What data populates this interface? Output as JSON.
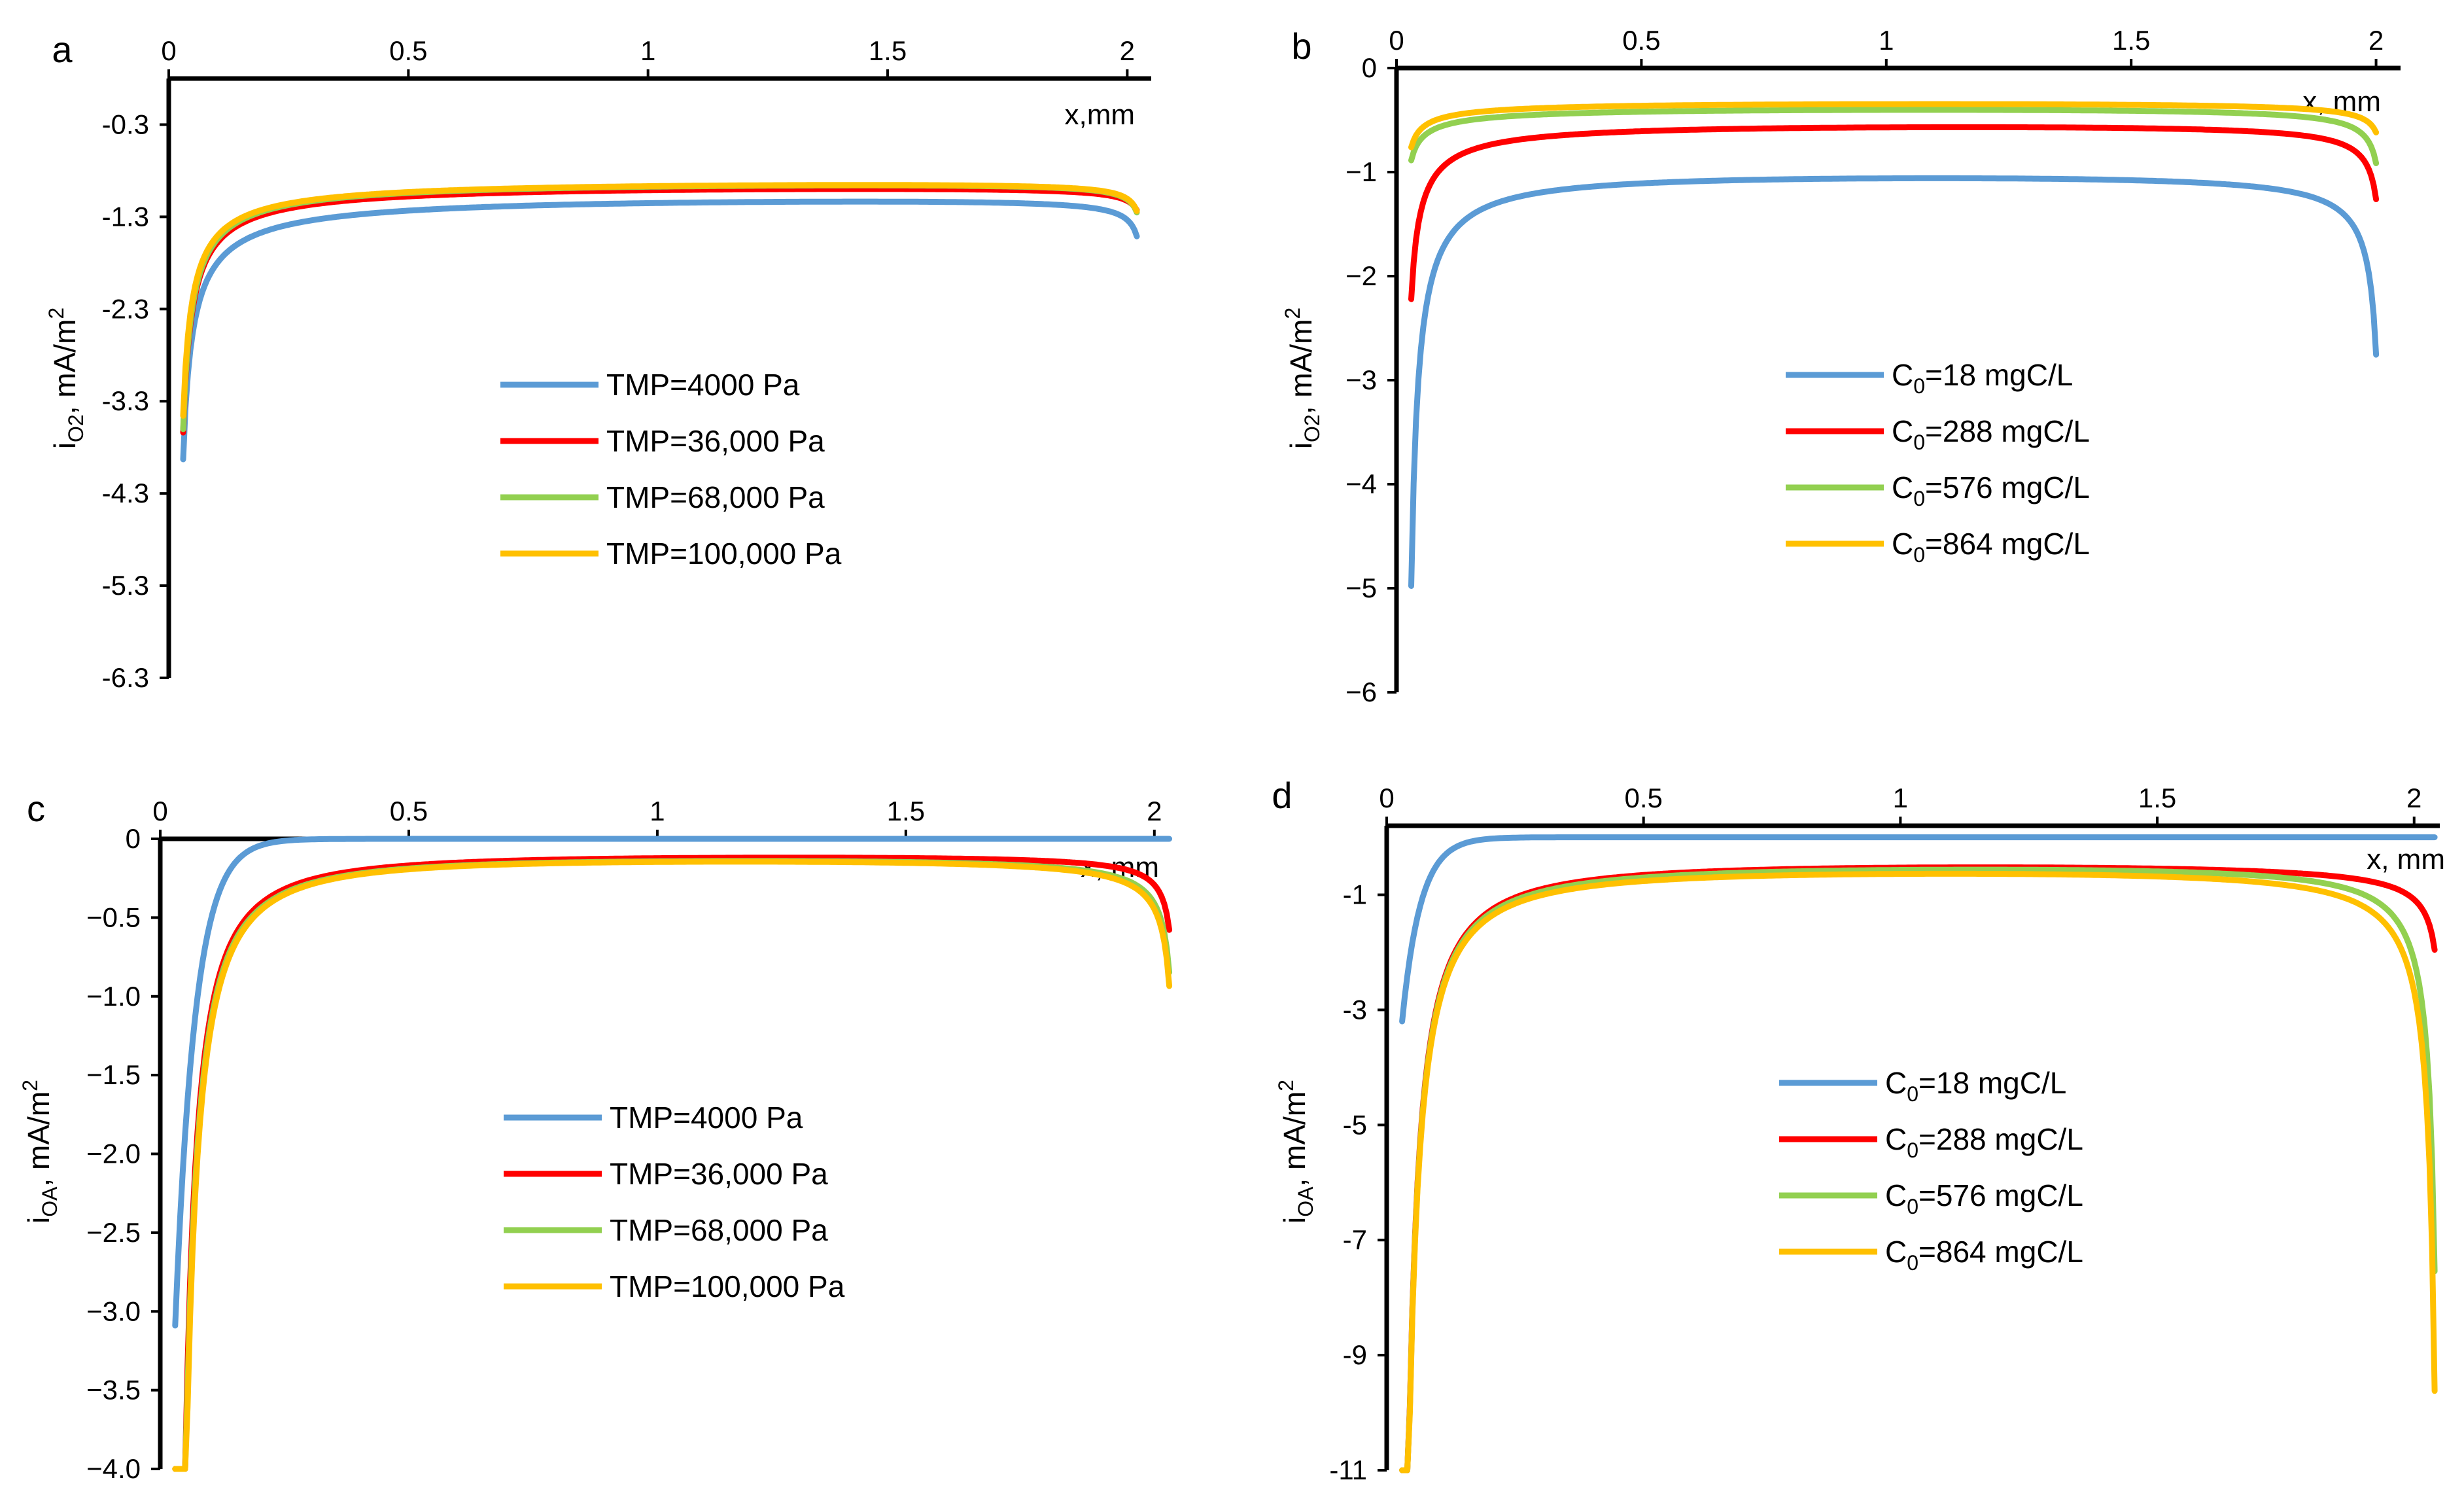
{
  "figure": {
    "colors": {
      "blue": "#5b9bd5",
      "red": "#ff0000",
      "green": "#92d050",
      "orange": "#ffc000"
    }
  },
  "chart_data": [
    {
      "id": "a",
      "panel_label": "a",
      "type": "line",
      "xlabel": "x,mm",
      "ylabel_main": "i",
      "ylabel_sub": "O2",
      "ylabel_rest": ",  mA/m",
      "ylabel_sup": "2",
      "xlim": [
        0,
        2.05
      ],
      "ylim": [
        -6.3,
        0.2
      ],
      "x_ticks": [
        0,
        0.5,
        1,
        1.5,
        2
      ],
      "x_tick_labels": [
        "0",
        "0.5",
        "1",
        "1.5",
        "2"
      ],
      "y_ticks": [
        -0.3,
        -1.3,
        -2.3,
        -3.3,
        -4.3,
        -5.3,
        -6.3
      ],
      "y_tick_labels": [
        "-0.3",
        "-1.3",
        "-2.3",
        "-3.3",
        "-4.3",
        "-5.3",
        "-6.3"
      ],
      "x_range": [
        0.03,
        2.02
      ],
      "legend": [
        "TMP=4000 Pa",
        "TMP=36,000 Pa",
        "TMP=68,000 Pa",
        "TMP=100,000 Pa"
      ],
      "legend_position": "center-right",
      "series": [
        {
          "name": "TMP=4000 Pa",
          "color": "#5b9bd5",
          "model": {
            "d": 0.99,
            "A": 0.125,
            "a": 0.75,
            "B": 0.036,
            "b": 0.6
          }
        },
        {
          "name": "TMP=36,000 Pa",
          "color": "#ff0000",
          "model": {
            "d": 0.88,
            "A": 0.095,
            "a": 0.8,
            "B": 0.036,
            "b": 0.5
          }
        },
        {
          "name": "TMP=68,000 Pa",
          "color": "#92d050",
          "model": {
            "d": 0.85,
            "A": 0.095,
            "a": 0.8,
            "B": 0.028,
            "b": 0.6
          }
        },
        {
          "name": "TMP=100,000 Pa",
          "color": "#ffc000",
          "model": {
            "d": 0.85,
            "A": 0.09,
            "a": 0.8,
            "B": 0.027,
            "b": 0.6
          }
        }
      ]
    },
    {
      "id": "b",
      "panel_label": "b",
      "type": "line",
      "xlabel": "x,  mm",
      "ylabel_main": "i",
      "ylabel_sub": "O2",
      "ylabel_rest": ",  mA/m",
      "ylabel_sup": "2",
      "xlim": [
        0,
        2.05
      ],
      "ylim": [
        -6,
        0
      ],
      "x_ticks": [
        0,
        0.5,
        1,
        1.5,
        2
      ],
      "x_tick_labels": [
        "0",
        "0.5",
        "1",
        "1.5",
        "2"
      ],
      "y_ticks": [
        0,
        -1,
        -2,
        -3,
        -4,
        -5,
        -6
      ],
      "y_tick_labels": [
        "0",
        "−1",
        "−2",
        "−3",
        "−4",
        "−5",
        "−6"
      ],
      "x_range": [
        0.03,
        2.0
      ],
      "legend": [
        {
          "pre": "C",
          "sub": "0",
          "post": "=18 mgC/L"
        },
        {
          "pre": "C",
          "sub": "0",
          "post": "=288 mgC/L"
        },
        {
          "pre": "C",
          "sub": "0",
          "post": "=576 mgC/L"
        },
        {
          "pre": "C",
          "sub": "0",
          "post": "=864 mgC/L"
        }
      ],
      "legend_position": "center-right",
      "series": [
        {
          "name": "C0=18 mgC/L",
          "color": "#5b9bd5",
          "model": {
            "d": 0.95,
            "A": 0.06,
            "a": 1.0,
            "B": 0.05,
            "b": 0.85
          }
        },
        {
          "name": "C0=288 mgC/L",
          "color": "#ff0000",
          "model": {
            "d": 0.47,
            "A": 0.06,
            "a": 0.8,
            "B": 0.04,
            "b": 0.7
          }
        },
        {
          "name": "C0=576 mgC/L",
          "color": "#92d050",
          "model": {
            "d": 0.31,
            "A": 0.055,
            "a": 0.55,
            "B": 0.037,
            "b": 0.65
          }
        },
        {
          "name": "C0=864 mgC/L",
          "color": "#ffc000",
          "model": {
            "d": 0.26,
            "A": 0.047,
            "a": 0.55,
            "B": 0.04,
            "b": 0.5
          }
        }
      ]
    },
    {
      "id": "c",
      "panel_label": "c",
      "type": "line",
      "xlabel": "x,  mm",
      "ylabel_main": "i",
      "ylabel_sub": "OA",
      "ylabel_rest": ",  mA/m",
      "ylabel_sup": "2",
      "xlim": [
        0,
        2.02
      ],
      "ylim": [
        -4,
        0
      ],
      "x_ticks": [
        0,
        0.5,
        1,
        1.5,
        2
      ],
      "x_tick_labels": [
        "0",
        "0.5",
        "1",
        "1.5",
        "2"
      ],
      "y_ticks": [
        0,
        -0.5,
        -1,
        -1.5,
        -2,
        -2.5,
        -3,
        -3.5,
        -4
      ],
      "y_tick_labels": [
        "0",
        "−0.5",
        "−1.0",
        "−1.5",
        "−2.0",
        "−2.5",
        "−3.0",
        "−3.5",
        "−4.0"
      ],
      "x_range": [
        0.03,
        2.03
      ],
      "legend": [
        "TMP=4000 Pa",
        "TMP=36,000 Pa",
        "TMP=68,000 Pa",
        "TMP=100,000 Pa"
      ],
      "legend_position": "center",
      "series": [
        {
          "name": "TMP=4000 Pa",
          "color": "#5b9bd5",
          "model": {
            "d": 0.0,
            "A": 3.09,
            "k": 25,
            "B": 0,
            "b": 1
          }
        },
        {
          "name": "TMP=36,000 Pa",
          "color": "#ff0000",
          "model": {
            "d": 0.08,
            "A": 0.026,
            "a": 1.5,
            "B": 0.017,
            "b": 0.8
          }
        },
        {
          "name": "TMP=68,000 Pa",
          "color": "#92d050",
          "model": {
            "d": 0.09,
            "A": 0.027,
            "a": 1.5,
            "B": 0.026,
            "b": 0.8
          }
        },
        {
          "name": "TMP=100,000 Pa",
          "color": "#ffc000",
          "model": {
            "d": 0.09,
            "A": 0.028,
            "a": 1.5,
            "B": 0.029,
            "b": 0.8
          }
        }
      ]
    },
    {
      "id": "d",
      "panel_label": "d",
      "type": "line",
      "xlabel": "x,  mm",
      "ylabel_main": "i",
      "ylabel_sub": "OA",
      "ylabel_rest": ",  mA/m",
      "ylabel_sup": "2",
      "xlim": [
        0,
        2.05
      ],
      "ylim": [
        -11,
        0.2
      ],
      "x_ticks": [
        0,
        0.5,
        1,
        1.5,
        2
      ],
      "x_tick_labels": [
        "0",
        "0.5",
        "1",
        "1.5",
        "2"
      ],
      "y_ticks": [
        -1,
        -3,
        -5,
        -7,
        -9,
        -11
      ],
      "y_tick_labels": [
        "-1",
        "-3",
        "-5",
        "-7",
        "-9",
        "-11"
      ],
      "x_range": [
        0.03,
        2.04
      ],
      "legend": [
        {
          "pre": "C",
          "sub": "0",
          "post": "=18 mgC/L"
        },
        {
          "pre": "C",
          "sub": "0",
          "post": "=288 mgC/L"
        },
        {
          "pre": "C",
          "sub": "0",
          "post": "=576 mgC/L"
        },
        {
          "pre": "C",
          "sub": "0",
          "post": "=864 mgC/L"
        }
      ],
      "legend_position": "center-right",
      "series": [
        {
          "name": "C0=18 mgC/L",
          "color": "#5b9bd5",
          "model": {
            "d": 0.0,
            "A": 3.2,
            "k": 28,
            "B": 0,
            "b": 1
          }
        },
        {
          "name": "C0=288 mgC/L",
          "color": "#ff0000",
          "model": {
            "d": 0.3,
            "A": 0.1,
            "a": 1.3,
            "B": 0.13,
            "b": 0.6
          }
        },
        {
          "name": "C0=576 mgC/L",
          "color": "#92d050",
          "model": {
            "d": 0.4,
            "A": 0.1,
            "a": 1.3,
            "B": 0.07,
            "b": 1.1
          }
        },
        {
          "name": "C0=864 mgC/L",
          "color": "#ffc000",
          "model": {
            "d": 0.45,
            "A": 0.1,
            "a": 1.3,
            "B": 0.09,
            "b": 1.1
          }
        }
      ]
    }
  ]
}
